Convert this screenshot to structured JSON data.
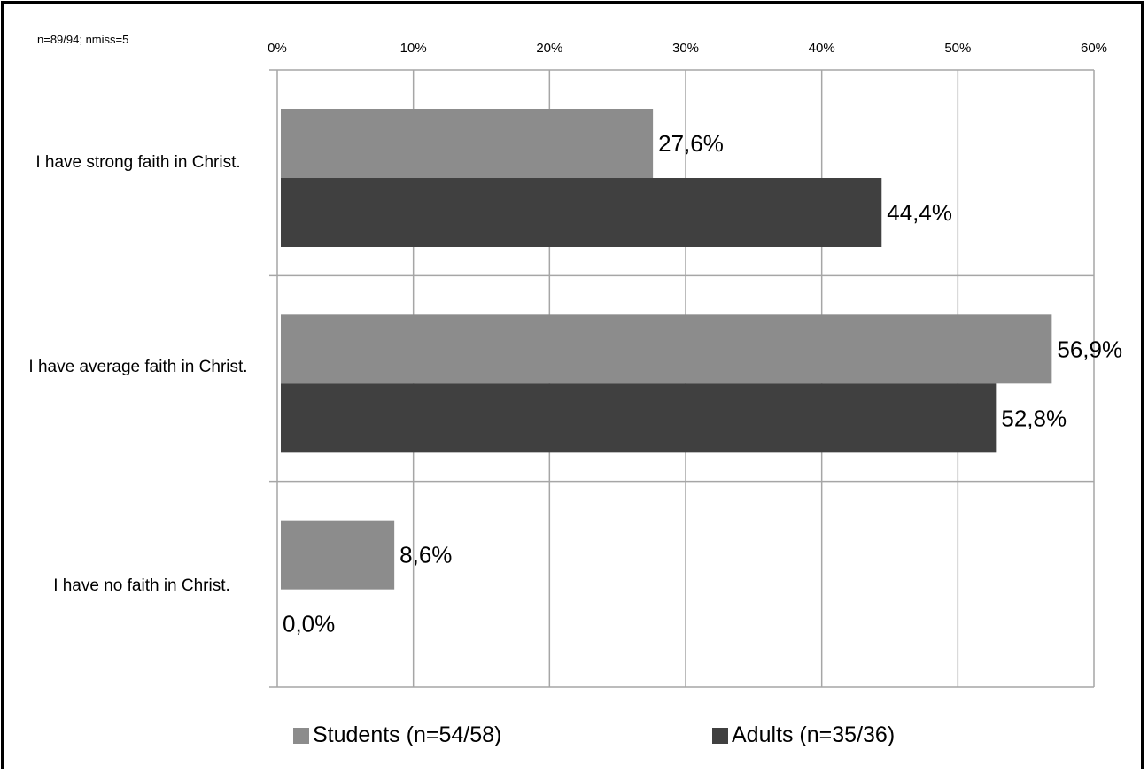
{
  "note": "n=89/94; nmiss=5",
  "colors": {
    "students": "#8c8c8c",
    "adults": "#404040",
    "grid": "#a6a6a6"
  },
  "legend": {
    "students": "Students (n=54/58)",
    "adults": "Adults (n=35/36)"
  },
  "chart_data": {
    "type": "bar",
    "orientation": "horizontal",
    "categories": [
      "I have strong faith in Christ.",
      "I have average faith in Christ.",
      "I have no faith in Christ."
    ],
    "series": [
      {
        "name": "Students (n=54/58)",
        "values": [
          27.6,
          56.9,
          8.6
        ],
        "labels": [
          "27,6%",
          "56,9%",
          "8,6%"
        ]
      },
      {
        "name": "Adults (n=35/36)",
        "values": [
          44.4,
          52.8,
          0.0
        ],
        "labels": [
          "44,4%",
          "52,8%",
          "0,0%"
        ]
      }
    ],
    "xlim": [
      0,
      60
    ],
    "xticks": [
      "0%",
      "10%",
      "20%",
      "30%",
      "40%",
      "50%",
      "60%"
    ],
    "axis_position": "top",
    "grid": true,
    "legend_position": "bottom"
  }
}
